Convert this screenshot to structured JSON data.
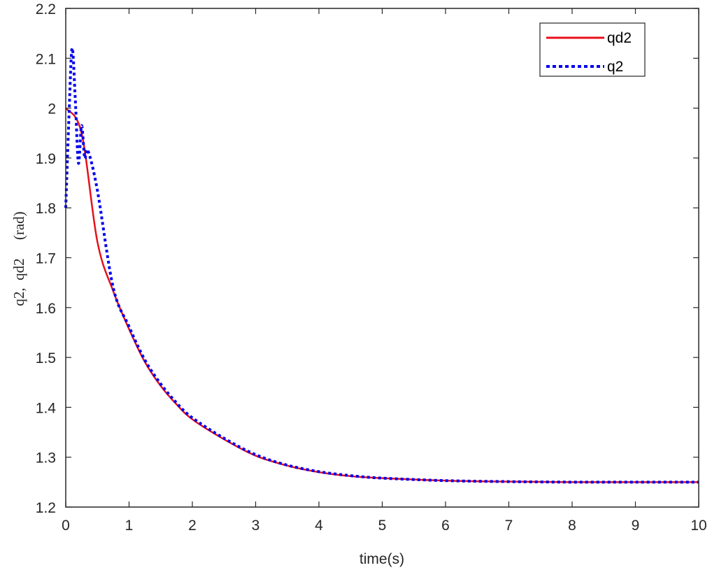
{
  "chart_data": {
    "type": "line",
    "title": "",
    "xlabel": "time(s)",
    "ylabel": "q2,  qd2     (rad)",
    "xlim": [
      0,
      10
    ],
    "ylim": [
      1.2,
      2.2
    ],
    "xticks": [
      0,
      1,
      2,
      3,
      4,
      5,
      6,
      7,
      8,
      9,
      10
    ],
    "yticks": [
      1.2,
      1.3,
      1.4,
      1.5,
      1.6,
      1.7,
      1.8,
      1.9,
      2.0,
      2.1,
      2.2
    ],
    "ytick_labels": [
      "1.2",
      "1.3",
      "1.4",
      "1.5",
      "1.6",
      "1.7",
      "1.8",
      "1.9",
      "2",
      "2.1",
      "2.2"
    ],
    "xtick_labels": [
      "0",
      "1",
      "2",
      "3",
      "4",
      "5",
      "6",
      "7",
      "8",
      "9",
      "10"
    ],
    "grid": false,
    "legend_position": "upper right",
    "series": [
      {
        "name": "qd2",
        "color": "#e8101c",
        "style": "solid",
        "x": [
          0,
          0.25,
          0.5,
          0.75,
          1,
          1.25,
          1.5,
          1.75,
          2,
          2.5,
          3,
          3.5,
          4,
          4.5,
          5,
          6,
          7,
          8,
          9,
          10
        ],
        "y": [
          2.0,
          1.95,
          1.732,
          1.633,
          1.557,
          1.491,
          1.443,
          1.406,
          1.376,
          1.336,
          1.303,
          1.283,
          1.27,
          1.262,
          1.258,
          1.253,
          1.251,
          1.25,
          1.25,
          1.25
        ]
      },
      {
        "name": "q2",
        "color": "#0000ee",
        "style": "dotted",
        "x": [
          0,
          0.05,
          0.1,
          0.15,
          0.2,
          0.25,
          0.3,
          0.35,
          0.5,
          0.75,
          1,
          1.25,
          1.5,
          1.75,
          2,
          2.5,
          3,
          3.5,
          4,
          4.5,
          5,
          6,
          7,
          8,
          9,
          10
        ],
        "y": [
          1.8,
          1.98,
          2.12,
          2.02,
          1.89,
          1.965,
          1.9,
          1.915,
          1.835,
          1.64,
          1.562,
          1.495,
          1.447,
          1.409,
          1.379,
          1.338,
          1.305,
          1.284,
          1.271,
          1.263,
          1.258,
          1.253,
          1.251,
          1.25,
          1.25,
          1.25
        ]
      }
    ]
  },
  "legend": {
    "items": [
      {
        "label": "qd2",
        "color": "#e8101c",
        "style": "solid"
      },
      {
        "label": "q2",
        "color": "#0000ee",
        "style": "dotted"
      }
    ]
  },
  "colors": {
    "axis": "#262626",
    "legend_border": "#262626",
    "background": "#ffffff"
  }
}
